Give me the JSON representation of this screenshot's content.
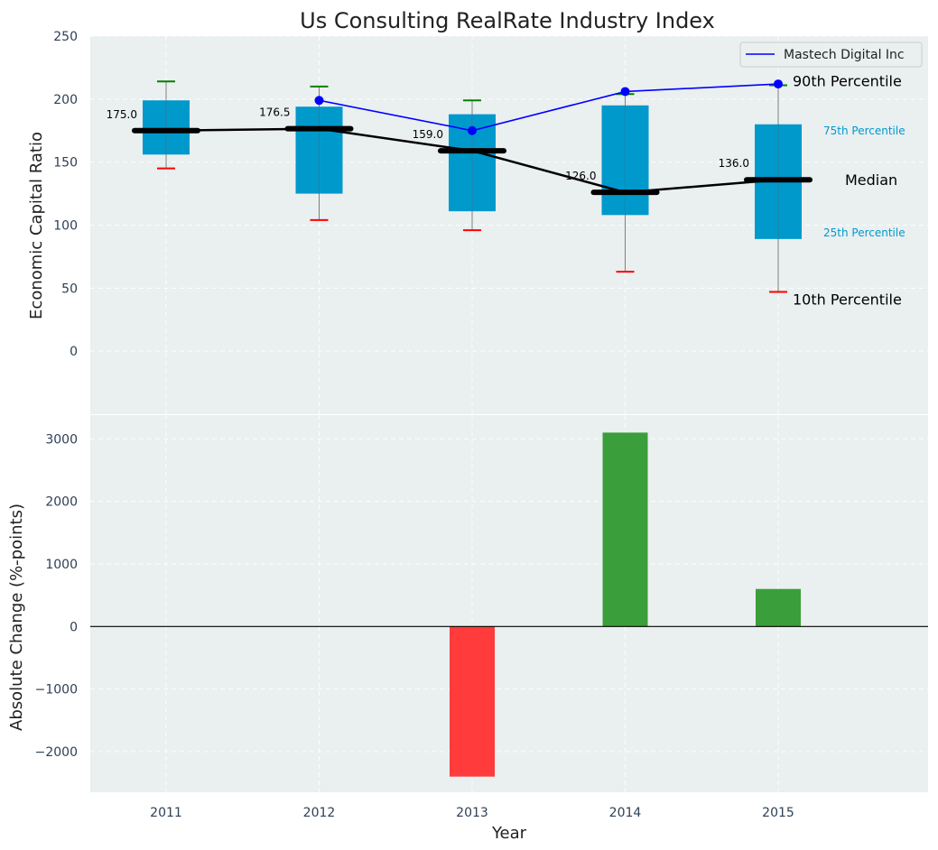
{
  "chart_data": [
    {
      "type": "box",
      "title": "Us Consulting RealRate Industry Index",
      "xlabel": "",
      "ylabel": "Economic Capital Ratio",
      "ylim": [
        -50,
        250
      ],
      "yticks": [
        0,
        50,
        100,
        150,
        200,
        250
      ],
      "grid": true,
      "categories": [
        "2011",
        "2012",
        "2013",
        "2014",
        "2015"
      ],
      "boxes": [
        {
          "p10": 145,
          "p25": 156,
          "median": 175.0,
          "p75": 199,
          "p90": 214
        },
        {
          "p10": 104,
          "p25": 125,
          "median": 176.5,
          "p75": 194,
          "p90": 210
        },
        {
          "p10": 96,
          "p25": 111,
          "median": 159.0,
          "p75": 188,
          "p90": 199
        },
        {
          "p10": 63,
          "p25": 108,
          "median": 126.0,
          "p75": 195,
          "p90": 204
        },
        {
          "p10": 47,
          "p25": 89,
          "median": 136.0,
          "p75": 180,
          "p90": 211
        }
      ],
      "median_labels": [
        "175.0",
        "176.5",
        "159.0",
        "126.0",
        "136.0"
      ],
      "series": [
        {
          "name": "Mastech Digital Inc",
          "x": [
            "2012",
            "2013",
            "2014",
            "2015"
          ],
          "values": [
            199,
            175,
            206,
            212
          ],
          "color": "#0000ff"
        }
      ],
      "legend": {
        "placement": "top-right",
        "entries": [
          "Mastech Digital Inc"
        ]
      },
      "annotations": {
        "p90": "90th Percentile",
        "p75": "75th Percentile",
        "median": "Median",
        "p25": "25th Percentile",
        "p10": "10th Percentile"
      },
      "colors": {
        "box": "#0099cc",
        "median": "#000000",
        "p90_cap": "#008000",
        "p10_cap": "#ff0000",
        "background": "#eaeff0"
      }
    },
    {
      "type": "bar",
      "xlabel": "Year",
      "ylabel": "Absolute Change (%-points)",
      "ylim": [
        -2650,
        3380
      ],
      "yticks": [
        -2000,
        -1000,
        0,
        1000,
        2000,
        3000
      ],
      "ytick_labels": [
        "−2000",
        "−1000",
        "0",
        "1000",
        "2000",
        "3000"
      ],
      "grid": true,
      "categories": [
        "2011",
        "2012",
        "2013",
        "2014",
        "2015"
      ],
      "values": [
        null,
        null,
        -2400,
        3100,
        600
      ],
      "colors": {
        "positive": "#3a9e3a",
        "negative": "#ff3b3b"
      }
    }
  ]
}
